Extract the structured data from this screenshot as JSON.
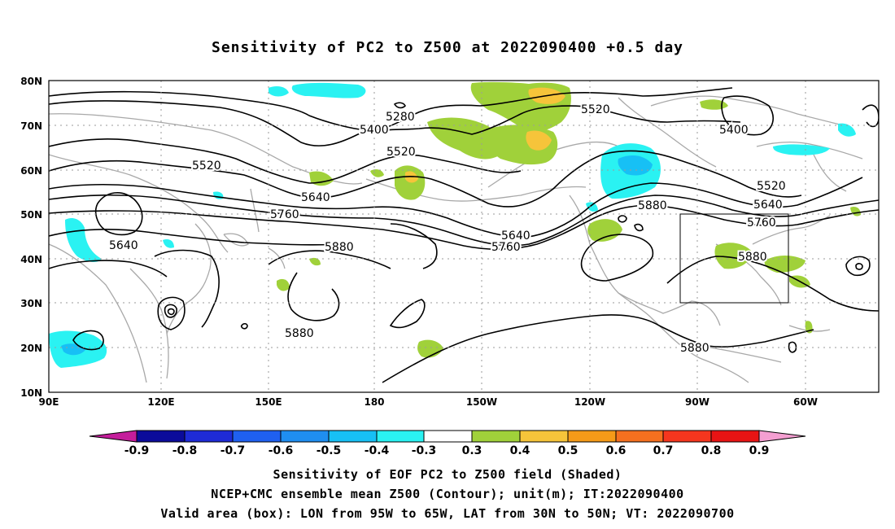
{
  "title": "Sensitivity of PC2 to Z500 at 2022090400 +0.5 day",
  "map": {
    "lat_labels": [
      "80N",
      "70N",
      "60N",
      "50N",
      "40N",
      "30N",
      "20N",
      "10N"
    ],
    "lon_labels": [
      "90E",
      "120E",
      "150E",
      "180",
      "150W",
      "120W",
      "90W",
      "60W"
    ],
    "contour_labels": [
      "5280",
      "5400",
      "5520",
      "5520",
      "5520",
      "5640",
      "5760",
      "5640",
      "5640",
      "5760",
      "5880",
      "5880",
      "5640",
      "5760",
      "5880",
      "5880",
      "5400",
      "5520",
      "5640",
      "5760",
      "5880"
    ],
    "box": {
      "lon_range": "95W to 65W",
      "lat_range": "30N to 50N"
    }
  },
  "colorbar": {
    "tick_labels": [
      "-0.9",
      "-0.8",
      "-0.7",
      "-0.6",
      "-0.5",
      "-0.4",
      "-0.3",
      "0.3",
      "0.4",
      "0.5",
      "0.6",
      "0.7",
      "0.8",
      "0.9"
    ],
    "colors": [
      "#c41d9b",
      "#0b0b9a",
      "#1e2bd6",
      "#1f60f0",
      "#1f8ef0",
      "#17c0f5",
      "#2af2f2",
      "#ffffff",
      "#a0d13a",
      "#f6c43a",
      "#f59a18",
      "#f5701f",
      "#f5361e",
      "#e81414",
      "#f49fd1"
    ]
  },
  "captions": {
    "line1": "Sensitivity of EOF PC2 to Z500 field (Shaded)",
    "line2": "NCEP+CMC ensemble mean Z500 (Contour); unit(m); IT:2022090400",
    "line3": "Valid area (box): LON from 95W to 65W, LAT from 30N to 50N; VT: 2022090700"
  }
}
